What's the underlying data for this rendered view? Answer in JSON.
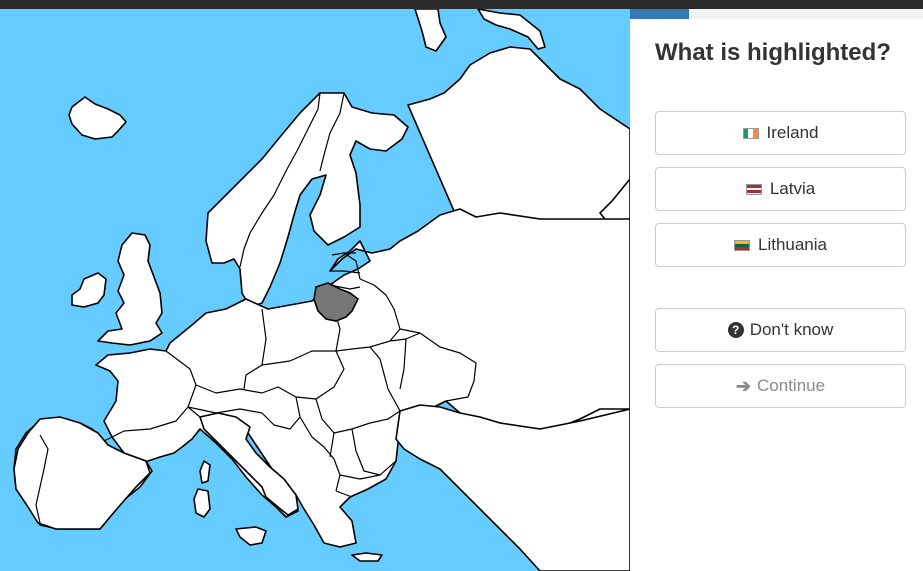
{
  "quiz": {
    "question": "What is highlighted?",
    "progress": 0.2,
    "answers": [
      {
        "label": "Ireland",
        "flag": [
          "#169b62",
          "#ffffff",
          "#ff883e"
        ],
        "flag_orientation": "vertical"
      },
      {
        "label": "Latvia",
        "flag": [
          "#9e3039",
          "#ffffff",
          "#9e3039"
        ],
        "flag_orientation": "horizontal"
      },
      {
        "label": "Lithuania",
        "flag": [
          "#fdb913",
          "#006a44",
          "#c1272d"
        ],
        "flag_orientation": "horizontal"
      }
    ],
    "dont_know_label": "Don't know",
    "continue_label": "Continue",
    "continue_disabled": true
  },
  "map": {
    "sea_color": "#66ccff",
    "land_color": "#ffffff",
    "highlight_color": "#777777",
    "highlighted_country": "Lithuania"
  }
}
